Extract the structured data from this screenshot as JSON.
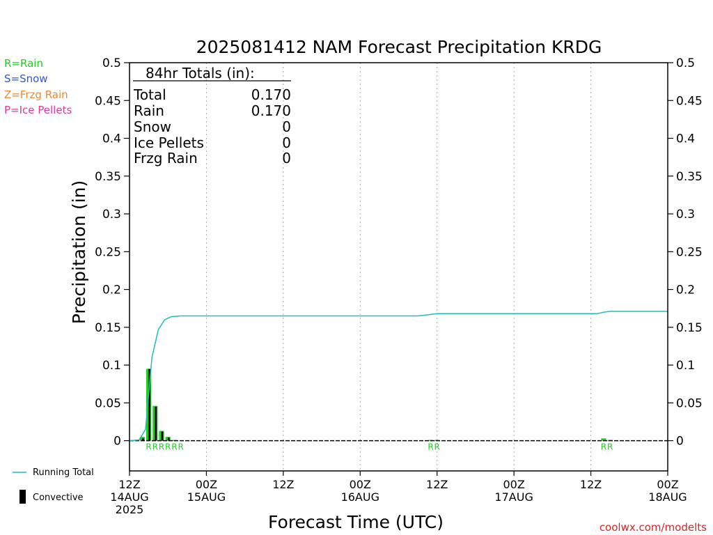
{
  "colors": {
    "rain": "#22cc22",
    "snow": "#3355dd",
    "frzg_rain": "#ee8833",
    "ice_pellets": "#ee3399",
    "running_total": "#22bbbb",
    "convective": "#000000",
    "grid": "#aaaaaa",
    "credit": "#dd2222"
  },
  "legend": {
    "precip_types": [
      {
        "label": "R=Rain",
        "color_key": "rain"
      },
      {
        "label": "S=Snow",
        "color_key": "snow"
      },
      {
        "label": "Z=Frzg Rain",
        "color_key": "frzg_rain"
      },
      {
        "label": "P=Ice Pellets",
        "color_key": "ice_pellets"
      }
    ],
    "running_total_label": "Running Total",
    "convective_label": "Convective"
  },
  "totals_box": {
    "header": "84hr Totals (in):",
    "rows": [
      {
        "label": "Total",
        "value": "0.170"
      },
      {
        "label": "Rain",
        "value": "0.170"
      },
      {
        "label": "Snow",
        "value": "0"
      },
      {
        "label": "Ice Pellets",
        "value": "0"
      },
      {
        "label": "Frzg Rain",
        "value": "0"
      }
    ]
  },
  "credit": "coolwx.com/modelts",
  "chart_data": {
    "type": "bar",
    "title": "2025081412 NAM Forecast Precipitation KRDG",
    "xlabel": "Forecast Time (UTC)",
    "ylabel": "Precipitation (in)",
    "ylim": [
      -0.04,
      0.5
    ],
    "xlim_hours": [
      0,
      84
    ],
    "y_ticks": [
      0,
      0.05,
      0.1,
      0.15,
      0.2,
      0.25,
      0.3,
      0.35,
      0.4,
      0.45,
      0.5
    ],
    "y_tick_labels": [
      "0",
      "0.05",
      "0.1",
      "0.15",
      "0.2",
      "0.25",
      "0.3",
      "0.35",
      "0.4",
      "0.45",
      "0.5"
    ],
    "x_ticks": [
      {
        "hour": 0,
        "lines": [
          "12Z",
          "14AUG",
          "2025"
        ]
      },
      {
        "hour": 12,
        "lines": [
          "00Z",
          "15AUG"
        ]
      },
      {
        "hour": 24,
        "lines": [
          "12Z"
        ]
      },
      {
        "hour": 36,
        "lines": [
          "00Z",
          "16AUG"
        ]
      },
      {
        "hour": 48,
        "lines": [
          "12Z"
        ]
      },
      {
        "hour": 60,
        "lines": [
          "00Z",
          "17AUG"
        ]
      },
      {
        "hour": 72,
        "lines": [
          "12Z"
        ]
      },
      {
        "hour": 84,
        "lines": [
          "00Z",
          "18AUG"
        ]
      }
    ],
    "grid": "vertical-dotted",
    "series": [
      {
        "name": "Rain",
        "kind": "bar",
        "color_key": "rain",
        "points": [
          {
            "hour": 2,
            "value": 0.005
          },
          {
            "hour": 3,
            "value": 0.095
          },
          {
            "hour": 4,
            "value": 0.046
          },
          {
            "hour": 5,
            "value": 0.013
          },
          {
            "hour": 6,
            "value": 0.005
          },
          {
            "hour": 7,
            "value": 0.001
          },
          {
            "hour": 47,
            "value": 0.001
          },
          {
            "hour": 48,
            "value": 0.001
          },
          {
            "hour": 74,
            "value": 0.003
          },
          {
            "hour": 75,
            "value": 0.001
          }
        ]
      },
      {
        "name": "Convective",
        "kind": "bar",
        "color_key": "convective",
        "points": [
          {
            "hour": 2,
            "value": 0.003
          },
          {
            "hour": 3,
            "value": 0.095
          },
          {
            "hour": 4,
            "value": 0.045
          },
          {
            "hour": 5,
            "value": 0.012
          },
          {
            "hour": 6,
            "value": 0.004
          }
        ]
      },
      {
        "name": "Running Total",
        "kind": "line",
        "color_key": "running_total",
        "points": [
          {
            "hour": 0,
            "value": 0
          },
          {
            "hour": 1.5,
            "value": 0.001
          },
          {
            "hour": 2.5,
            "value": 0.015
          },
          {
            "hour": 3.5,
            "value": 0.11
          },
          {
            "hour": 4.5,
            "value": 0.147
          },
          {
            "hour": 5.5,
            "value": 0.16
          },
          {
            "hour": 6.5,
            "value": 0.164
          },
          {
            "hour": 8,
            "value": 0.165
          },
          {
            "hour": 45,
            "value": 0.165
          },
          {
            "hour": 46,
            "value": 0.166
          },
          {
            "hour": 48,
            "value": 0.168
          },
          {
            "hour": 73,
            "value": 0.168
          },
          {
            "hour": 74,
            "value": 0.17
          },
          {
            "hour": 75,
            "value": 0.171
          },
          {
            "hour": 84,
            "value": 0.171
          }
        ]
      }
    ],
    "ptype_markers": [
      {
        "hour": 3,
        "text": "R"
      },
      {
        "hour": 4,
        "text": "R"
      },
      {
        "hour": 5,
        "text": "R"
      },
      {
        "hour": 6,
        "text": "R"
      },
      {
        "hour": 7,
        "text": "R"
      },
      {
        "hour": 8,
        "text": "R"
      },
      {
        "hour": 47,
        "text": "R"
      },
      {
        "hour": 48,
        "text": "R"
      },
      {
        "hour": 74,
        "text": "R"
      },
      {
        "hour": 75,
        "text": "R"
      }
    ]
  }
}
